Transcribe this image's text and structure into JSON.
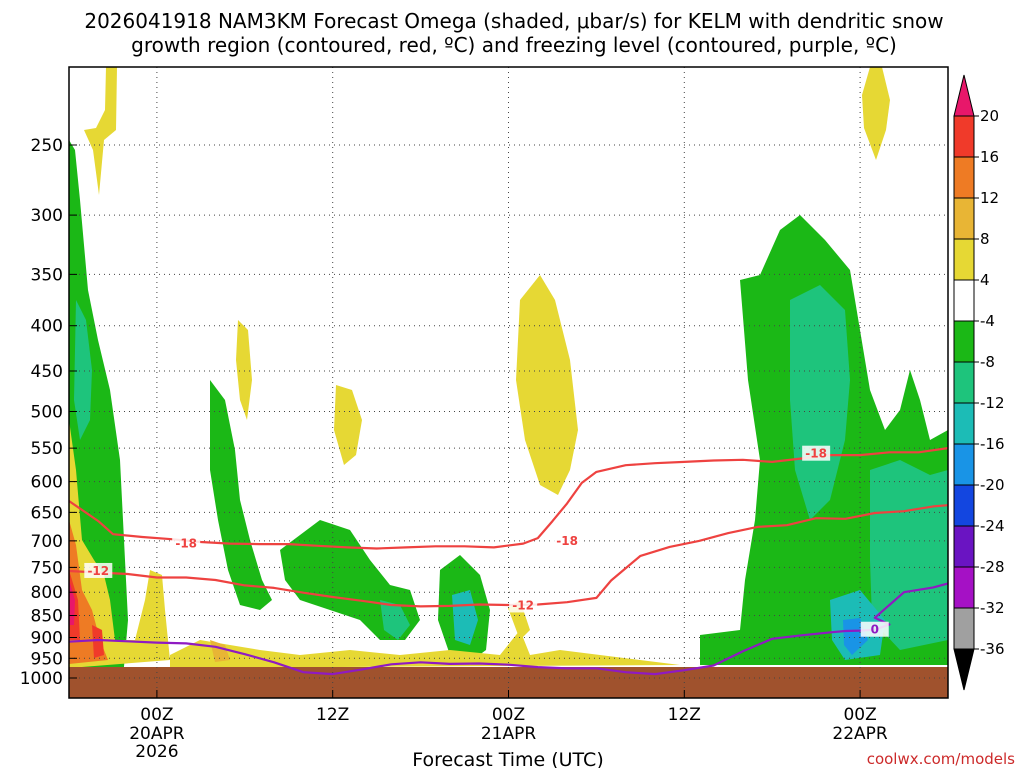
{
  "chart_data": {
    "type": "heatmap",
    "title_line1": "2026041918 NAM3KM Forecast Omega (shaded, μbar/s) for KELM with dendritic snow",
    "title_line2": "growth region (contoured, red, ºC) and freezing level (contoured, purple, ºC)",
    "xlabel": "Forecast Time (UTC)",
    "ylabel": "",
    "x_ticks": [
      {
        "hour": 6,
        "label": "00Z",
        "sub1": "20APR",
        "sub2": "2026"
      },
      {
        "hour": 18,
        "label": "12Z",
        "sub1": "",
        "sub2": ""
      },
      {
        "hour": 30,
        "label": "00Z",
        "sub1": "21APR",
        "sub2": ""
      },
      {
        "hour": 42,
        "label": "12Z",
        "sub1": "",
        "sub2": ""
      },
      {
        "hour": 54,
        "label": "00Z",
        "sub1": "22APR",
        "sub2": ""
      }
    ],
    "x_range": [
      0,
      60
    ],
    "y_ticks": [
      250,
      300,
      350,
      400,
      450,
      500,
      550,
      600,
      650,
      700,
      750,
      800,
      850,
      900,
      950,
      1000
    ],
    "y_range_hpa": [
      1050,
      200
    ],
    "ground_hpa": 970,
    "colorbar": {
      "levels": [
        20,
        16,
        12,
        8,
        4,
        -4,
        -8,
        -12,
        -16,
        -20,
        -24,
        -28,
        -32,
        -36
      ],
      "colors": [
        "#e8176a",
        "#f03a2a",
        "#ee7b24",
        "#e8b535",
        "#e6d834",
        "#ffffff",
        "#1bb816",
        "#1ec47c",
        "#1cbcb6",
        "#1994e6",
        "#1346e0",
        "#6a14c2",
        "#a511c5",
        "#a0a0a0",
        "#000000"
      ]
    },
    "series": [
      {
        "name": "-18 C isotherm",
        "color": "#ee4240",
        "label": "-18",
        "label_at": [
          [
            8,
            705
          ],
          [
            34,
            700
          ],
          [
            51,
            558
          ]
        ],
        "points": [
          [
            0,
            631
          ],
          [
            2,
            665
          ],
          [
            3,
            688
          ],
          [
            5,
            693
          ],
          [
            7,
            697
          ],
          [
            9,
            702
          ],
          [
            11,
            705
          ],
          [
            13,
            706
          ],
          [
            15,
            706
          ],
          [
            17,
            709
          ],
          [
            19,
            712
          ],
          [
            21,
            714
          ],
          [
            23,
            712
          ],
          [
            25,
            710
          ],
          [
            27,
            710
          ],
          [
            29,
            712
          ],
          [
            31,
            705
          ],
          [
            32,
            695
          ],
          [
            33,
            665
          ],
          [
            34,
            635
          ],
          [
            35,
            602
          ],
          [
            36,
            585
          ],
          [
            38,
            575
          ],
          [
            40,
            572
          ],
          [
            42,
            570
          ],
          [
            44,
            568
          ],
          [
            46,
            567
          ],
          [
            48,
            570
          ],
          [
            50,
            565
          ],
          [
            52,
            560
          ],
          [
            54,
            560
          ],
          [
            56,
            556
          ],
          [
            58,
            556
          ],
          [
            60,
            550
          ]
        ]
      },
      {
        "name": "-12 C isotherm",
        "color": "#ee4240",
        "label": "-12",
        "label_at": [
          [
            2,
            757
          ],
          [
            31,
            828
          ]
        ],
        "points": [
          [
            0,
            757
          ],
          [
            2,
            760
          ],
          [
            4,
            763
          ],
          [
            6,
            770
          ],
          [
            8,
            770
          ],
          [
            10,
            775
          ],
          [
            12,
            786
          ],
          [
            14,
            791
          ],
          [
            16,
            801
          ],
          [
            18,
            810
          ],
          [
            20,
            818
          ],
          [
            22,
            827
          ],
          [
            24,
            830
          ],
          [
            26,
            829
          ],
          [
            28,
            826
          ],
          [
            30,
            827
          ],
          [
            32,
            826
          ],
          [
            34,
            821
          ],
          [
            36,
            812
          ],
          [
            37,
            776
          ],
          [
            39,
            728
          ],
          [
            41,
            711
          ],
          [
            43,
            700
          ],
          [
            45,
            686
          ],
          [
            47,
            675
          ],
          [
            49,
            672
          ],
          [
            51,
            660
          ],
          [
            53,
            661
          ],
          [
            55,
            651
          ],
          [
            57,
            648
          ],
          [
            59,
            640
          ],
          [
            60,
            638
          ]
        ]
      },
      {
        "name": "0 C freezing level",
        "color": "#8f1ac2",
        "label": "0",
        "label_at": [
          [
            55,
            882
          ]
        ],
        "points": [
          [
            0,
            910
          ],
          [
            2,
            906
          ],
          [
            4,
            909
          ],
          [
            6,
            912
          ],
          [
            8,
            914
          ],
          [
            10,
            922
          ],
          [
            12,
            940
          ],
          [
            14,
            960
          ],
          [
            16,
            985
          ],
          [
            18,
            990
          ],
          [
            20,
            978
          ],
          [
            22,
            965
          ],
          [
            24,
            960
          ],
          [
            26,
            964
          ],
          [
            28,
            963
          ],
          [
            30,
            966
          ],
          [
            32,
            972
          ],
          [
            34,
            975
          ],
          [
            36,
            975
          ],
          [
            38,
            985
          ],
          [
            40,
            990
          ],
          [
            42,
            980
          ],
          [
            44,
            968
          ],
          [
            46,
            933
          ],
          [
            48,
            903
          ],
          [
            50,
            895
          ],
          [
            52,
            888
          ],
          [
            53,
            885
          ],
          [
            54,
            884
          ],
          [
            55,
            882
          ],
          [
            56,
            870
          ],
          [
            55,
            855
          ],
          [
            57,
            800
          ],
          [
            58,
            795
          ],
          [
            59,
            790
          ],
          [
            60,
            782
          ]
        ]
      }
    ],
    "legend": "colorbar right"
  },
  "credit": "coolwx.com/models"
}
